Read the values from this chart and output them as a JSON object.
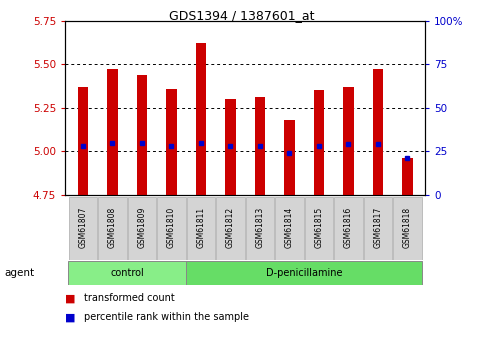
{
  "title": "GDS1394 / 1387601_at",
  "samples": [
    "GSM61807",
    "GSM61808",
    "GSM61809",
    "GSM61810",
    "GSM61811",
    "GSM61812",
    "GSM61813",
    "GSM61814",
    "GSM61815",
    "GSM61816",
    "GSM61817",
    "GSM61818"
  ],
  "bar_tops": [
    5.37,
    5.47,
    5.44,
    5.36,
    5.62,
    5.3,
    5.31,
    5.18,
    5.35,
    5.37,
    5.47,
    4.96
  ],
  "bar_bottom": 4.75,
  "percentile_values": [
    5.03,
    5.05,
    5.05,
    5.03,
    5.05,
    5.03,
    5.03,
    4.99,
    5.03,
    5.04,
    5.04,
    4.96
  ],
  "ylim_left": [
    4.75,
    5.75
  ],
  "ylim_right": [
    0,
    100
  ],
  "yticks_left": [
    4.75,
    5.0,
    5.25,
    5.5,
    5.75
  ],
  "yticks_right": [
    0,
    25,
    50,
    75,
    100
  ],
  "bar_color": "#cc0000",
  "percentile_color": "#0000cc",
  "bar_width": 0.35,
  "groups": [
    {
      "label": "control",
      "start": 0,
      "end": 3,
      "color": "#88ee88"
    },
    {
      "label": "D-penicillamine",
      "start": 4,
      "end": 11,
      "color": "#66dd66"
    }
  ],
  "agent_label": "agent",
  "legend_bar_label": "transformed count",
  "legend_pct_label": "percentile rank within the sample",
  "tick_color_left": "#cc0000",
  "tick_color_right": "#0000cc",
  "grid_dotted_vals": [
    5.0,
    5.25,
    5.5
  ]
}
